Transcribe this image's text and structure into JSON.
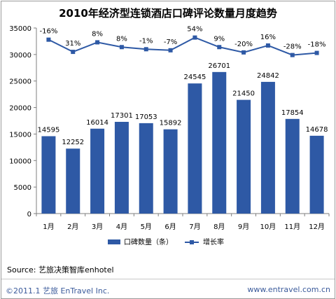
{
  "chart_data": {
    "type": "bar",
    "title": "2010年经济型连锁酒店口碑评论数量月度趋势",
    "categories": [
      "1月",
      "2月",
      "3月",
      "4月",
      "5月",
      "6月",
      "7月",
      "8月",
      "9月",
      "10月",
      "11月",
      "12月"
    ],
    "series": [
      {
        "name": "口碑数量（条）",
        "type": "bar",
        "values": [
          14595,
          12252,
          16014,
          17301,
          17053,
          15892,
          24545,
          26701,
          21450,
          24842,
          17854,
          14678
        ],
        "color": "#2e59a5"
      },
      {
        "name": "增长率",
        "type": "line",
        "values": [
          32800,
          30500,
          32300,
          31400,
          31000,
          30800,
          33200,
          31400,
          30400,
          31700,
          29900,
          30300
        ],
        "labels": [
          "-16%",
          "31%",
          "8%",
          "8%",
          "-1%",
          "-7%",
          "54%",
          "9%",
          "-20%",
          "16%",
          "-28%",
          "-18%"
        ],
        "color": "#2e59a5"
      }
    ],
    "yticks": [
      0,
      5000,
      10000,
      15000,
      20000,
      25000,
      30000,
      35000
    ],
    "ylim": [
      0,
      35000
    ],
    "grid": false,
    "legend": "bottom"
  },
  "source": "Source: 艺旅决策智库enhotel",
  "footer": {
    "copyright": "©2011.1 艺旅 EnTravel Inc.",
    "website": "www.entravel.com.cn"
  }
}
